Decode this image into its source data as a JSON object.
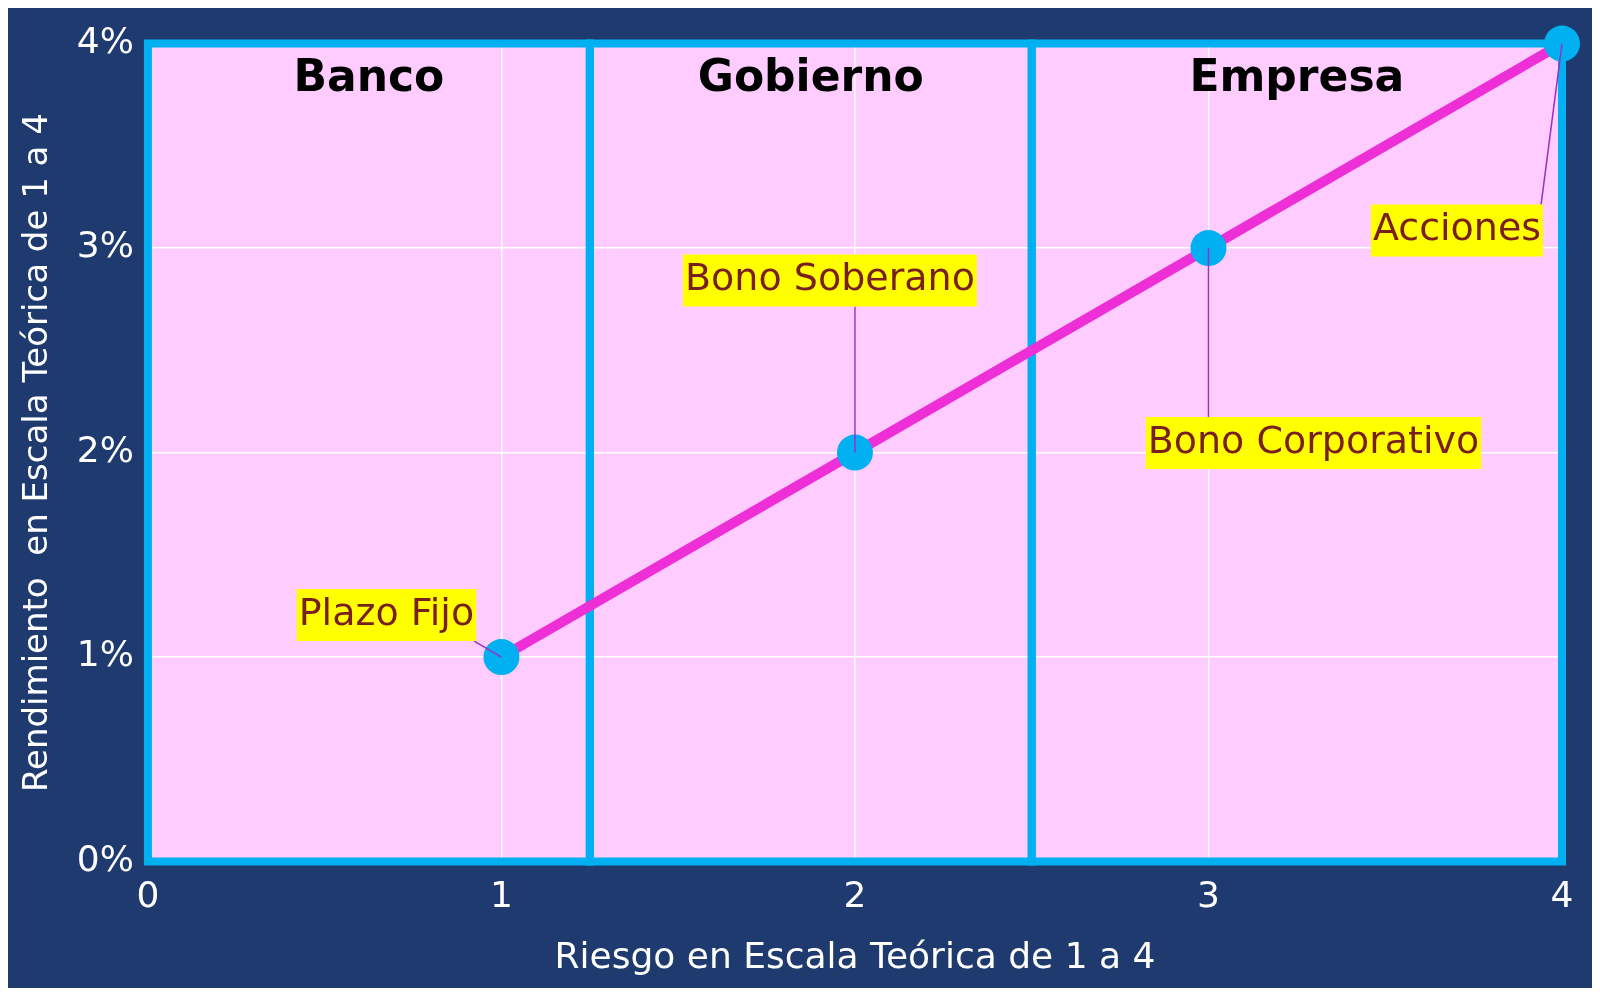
{
  "chart_data": {
    "type": "line",
    "xlabel": "Riesgo en Escala Teórica de 1 a 4",
    "ylabel": "Rendimiento  en Escala Teórica de 1 a 4",
    "x": [
      1,
      2,
      3,
      4
    ],
    "series": [
      {
        "color": "#ee2fd8",
        "values": [
          1,
          2,
          3,
          4
        ]
      }
    ],
    "marker": "circle",
    "line_style": "solid",
    "grid": true,
    "legend": false,
    "xlim": [
      0,
      4
    ],
    "xticks": [
      0,
      1,
      2,
      3,
      4
    ],
    "ylim": [
      0,
      4
    ],
    "yticks": [
      {
        "value": 0,
        "label": "0%"
      },
      {
        "value": 1,
        "label": "1%"
      },
      {
        "value": 2,
        "label": "2%"
      },
      {
        "value": 3,
        "label": "3%"
      },
      {
        "value": 4,
        "label": "4%"
      }
    ],
    "bands": [
      {
        "axis": "x",
        "from": 0,
        "to": 1.25,
        "label": "Banco",
        "color": "#ffccff"
      },
      {
        "axis": "x",
        "from": 1.25,
        "to": 2.5,
        "label": "Gobierno",
        "color": "#ffccff"
      },
      {
        "axis": "x",
        "from": 2.5,
        "to": 4,
        "label": "Empresa",
        "color": "#ffccff"
      }
    ],
    "annotations": [
      {
        "text": "Plazo Fijo",
        "x": 1,
        "y": 1
      },
      {
        "text": "Bono Soberano",
        "x": 2,
        "y": 2
      },
      {
        "text": "Bono Corporativo",
        "x": 3,
        "y": 3
      },
      {
        "text": "Acciones",
        "x": 4,
        "y": 4
      }
    ]
  }
}
